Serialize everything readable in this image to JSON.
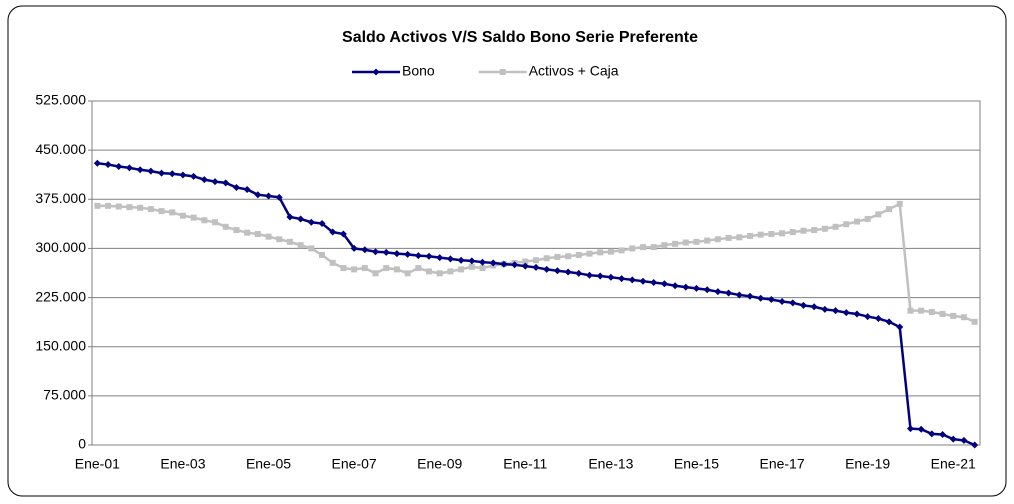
{
  "chart_data": {
    "type": "line",
    "title": "Saldo Activos V/S Saldo Bono Serie Preferente",
    "categories": [
      "Ene-01",
      null,
      null,
      null,
      null,
      null,
      null,
      null,
      "Ene-03",
      null,
      null,
      null,
      null,
      null,
      null,
      null,
      "Ene-05",
      null,
      null,
      null,
      null,
      null,
      null,
      null,
      "Ene-07",
      null,
      null,
      null,
      null,
      null,
      null,
      null,
      "Ene-09",
      null,
      null,
      null,
      null,
      null,
      null,
      null,
      "Ene-11",
      null,
      null,
      null,
      null,
      null,
      null,
      null,
      "Ene-13",
      null,
      null,
      null,
      null,
      null,
      null,
      null,
      "Ene-15",
      null,
      null,
      null,
      null,
      null,
      null,
      null,
      "Ene-17",
      null,
      null,
      null,
      null,
      null,
      null,
      null,
      "Ene-19",
      null,
      null,
      null,
      null,
      null,
      null,
      null,
      "Ene-21",
      null,
      null
    ],
    "series": [
      {
        "name": "Bono",
        "color": "#000080",
        "marker": "diamond",
        "values": [
          430000,
          428000,
          425000,
          423000,
          420000,
          418000,
          415000,
          414000,
          412000,
          410000,
          405000,
          402000,
          400000,
          393000,
          390000,
          382000,
          380000,
          378000,
          348000,
          345000,
          340000,
          338000,
          325000,
          322000,
          300000,
          298000,
          295000,
          294000,
          292000,
          291000,
          289000,
          288000,
          286000,
          284000,
          282000,
          281000,
          279000,
          278000,
          276000,
          275000,
          273000,
          271000,
          268000,
          266000,
          264000,
          262000,
          259000,
          258000,
          256000,
          254000,
          252000,
          250000,
          248000,
          246000,
          243000,
          241000,
          239000,
          237000,
          234000,
          232000,
          229000,
          227000,
          224000,
          222000,
          219000,
          217000,
          213000,
          211000,
          207000,
          205000,
          202000,
          200000,
          196000,
          193000,
          188000,
          180000,
          25000,
          24000,
          17000,
          16000,
          9000,
          7000,
          0
        ]
      },
      {
        "name": "Activos + Caja",
        "color": "#c0c0c0",
        "marker": "square",
        "values": [
          365000,
          365000,
          364000,
          363000,
          362000,
          360000,
          357000,
          355000,
          350000,
          347000,
          343000,
          340000,
          333000,
          328000,
          324000,
          322000,
          318000,
          314000,
          310000,
          305000,
          300000,
          290000,
          278000,
          270000,
          268000,
          270000,
          262000,
          270000,
          268000,
          262000,
          270000,
          265000,
          262000,
          265000,
          268000,
          272000,
          270000,
          274000,
          276000,
          278000,
          280000,
          282000,
          285000,
          287000,
          288000,
          290000,
          292000,
          294000,
          295000,
          297000,
          300000,
          302000,
          302000,
          305000,
          307000,
          309000,
          310000,
          312000,
          314000,
          316000,
          317000,
          319000,
          321000,
          322000,
          323000,
          325000,
          327000,
          328000,
          330000,
          333000,
          337000,
          341000,
          345000,
          352000,
          360000,
          368000,
          205000,
          205000,
          203000,
          200000,
          197000,
          195000,
          188000
        ]
      }
    ],
    "ylim": [
      0,
      525000
    ],
    "yticks": [
      0,
      {
        "value": 75000,
        "label": "75.000"
      },
      {
        "value": 150000,
        "label": "150.000"
      },
      {
        "value": 225000,
        "label": "225.000"
      },
      {
        "value": 300000,
        "label": "300.000"
      },
      {
        "value": 375000,
        "label": "375.000"
      },
      {
        "value": 450000,
        "label": "450.000"
      },
      {
        "value": 525000,
        "label": "525.000"
      }
    ],
    "grid": true,
    "legend": "top"
  }
}
